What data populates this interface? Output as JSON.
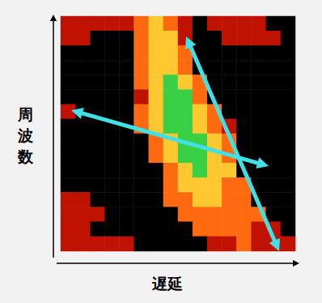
{
  "chart_data": {
    "type": "heatmap",
    "xlabel": "遅延",
    "ylabel": "周波数",
    "tick_labels": false,
    "color_range": [
      0,
      4
    ],
    "cells": [
      [
        1,
        1,
        1,
        1,
        1,
        2,
        3,
        2,
        1,
        0,
        1,
        1,
        1,
        1,
        0,
        0
      ],
      [
        1,
        1,
        0,
        0,
        0,
        2,
        3,
        3,
        1,
        0,
        0,
        1,
        1,
        1,
        1,
        0
      ],
      [
        0,
        0,
        0,
        0,
        0,
        2,
        3,
        3,
        2,
        0,
        0,
        0,
        0,
        0,
        0,
        0
      ],
      [
        0,
        0,
        0,
        0,
        0,
        2,
        3,
        3,
        2,
        0,
        0,
        0,
        0,
        0,
        0,
        0
      ],
      [
        0,
        0,
        0,
        0,
        0,
        2,
        3,
        4,
        3,
        2,
        0,
        0,
        0,
        0,
        0,
        0
      ],
      [
        0,
        0,
        0,
        0,
        0,
        1,
        3,
        4,
        4,
        2,
        0,
        0,
        0,
        0,
        0,
        0
      ],
      [
        1,
        0,
        0,
        0,
        0,
        2,
        3,
        4,
        4,
        3,
        2,
        0,
        0,
        0,
        0,
        0
      ],
      [
        0,
        0,
        0,
        0,
        0,
        2,
        3,
        4,
        4,
        3,
        2,
        1,
        0,
        0,
        0,
        0
      ],
      [
        0,
        0,
        0,
        0,
        0,
        0,
        2,
        3,
        4,
        4,
        3,
        2,
        0,
        0,
        0,
        0
      ],
      [
        0,
        0,
        0,
        0,
        0,
        0,
        2,
        3,
        4,
        4,
        3,
        2,
        0,
        0,
        0,
        0
      ],
      [
        0,
        0,
        0,
        0,
        0,
        0,
        0,
        2,
        3,
        4,
        3,
        3,
        0,
        0,
        0,
        0
      ],
      [
        0,
        0,
        0,
        0,
        0,
        0,
        0,
        2,
        3,
        3,
        3,
        2,
        2,
        0,
        0,
        0
      ],
      [
        1,
        1,
        0,
        0,
        0,
        0,
        0,
        2,
        2,
        3,
        3,
        2,
        2,
        0,
        0,
        0
      ],
      [
        1,
        1,
        1,
        0,
        0,
        0,
        0,
        0,
        2,
        2,
        2,
        2,
        2,
        2,
        0,
        0
      ],
      [
        1,
        1,
        0,
        0,
        0,
        0,
        0,
        0,
        0,
        2,
        2,
        2,
        2,
        1,
        1,
        0
      ],
      [
        1,
        1,
        1,
        1,
        1,
        0,
        0,
        0,
        0,
        0,
        1,
        1,
        2,
        1,
        1,
        1
      ]
    ]
  }
}
